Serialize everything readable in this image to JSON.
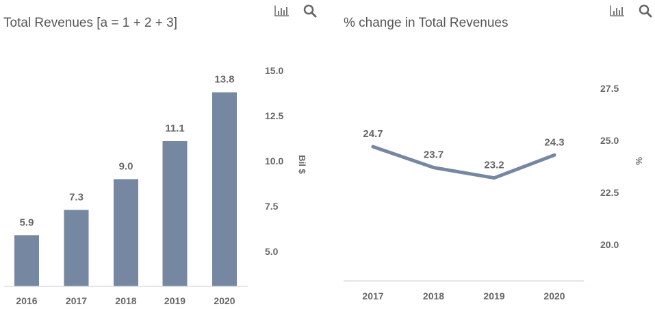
{
  "colors": {
    "bar": "#7687a2",
    "line": "#7687a2",
    "text": "#666666",
    "axis": "#d9dde3"
  },
  "chart_data": [
    {
      "type": "bar",
      "title": "Total Revenues [a = 1 + 2 + 3]",
      "categories": [
        "2016",
        "2017",
        "2018",
        "2019",
        "2020"
      ],
      "values": [
        5.9,
        7.3,
        9.0,
        11.1,
        13.8
      ],
      "data_labels": [
        "5.9",
        "7.3",
        "9.0",
        "11.1",
        "13.8"
      ],
      "ylabel": "Bil $",
      "yticks": [
        "5.0",
        "7.5",
        "10.0",
        "12.5",
        "15.0"
      ],
      "ylim": [
        3.07,
        15
      ],
      "yaxis_position": "right",
      "grid": false,
      "icons": [
        "bar-chart-icon",
        "search-icon"
      ]
    },
    {
      "type": "line",
      "title": "% change in Total Revenues",
      "categories": [
        "2017",
        "2018",
        "2019",
        "2020"
      ],
      "values": [
        24.7,
        23.7,
        23.2,
        24.3
      ],
      "data_labels": [
        "24.7",
        "23.7",
        "23.2",
        "24.3"
      ],
      "ylabel": "%",
      "yticks": [
        "20.0",
        "22.5",
        "25.0",
        "27.5"
      ],
      "ylim": [
        18.26,
        28.5
      ],
      "yaxis_position": "right",
      "grid": false,
      "icons": [
        "bar-chart-icon",
        "search-icon"
      ]
    }
  ]
}
